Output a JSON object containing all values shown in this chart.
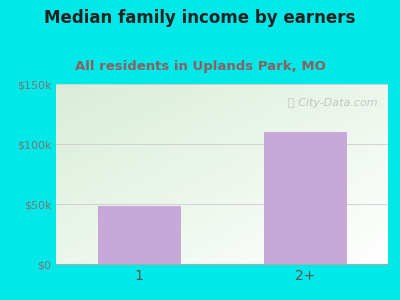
{
  "title": "Median family income by earners",
  "subtitle": "All residents in Uplands Park, MO",
  "categories": [
    "1",
    "2+"
  ],
  "values": [
    48000,
    110000
  ],
  "bar_color": "#c8a8d8",
  "ylim": [
    0,
    150000
  ],
  "yticks": [
    0,
    50000,
    100000,
    150000
  ],
  "ytick_labels": [
    "$0",
    "$50k",
    "$100k",
    "$150k"
  ],
  "title_color": "#222222",
  "subtitle_color": "#8b6060",
  "background_outer": "#00e8e8",
  "background_inner_topleft": "#daeeda",
  "background_inner_bottomright": "#f8fff8",
  "watermark": "City-Data.com",
  "title_fontsize": 12,
  "subtitle_fontsize": 9.5
}
